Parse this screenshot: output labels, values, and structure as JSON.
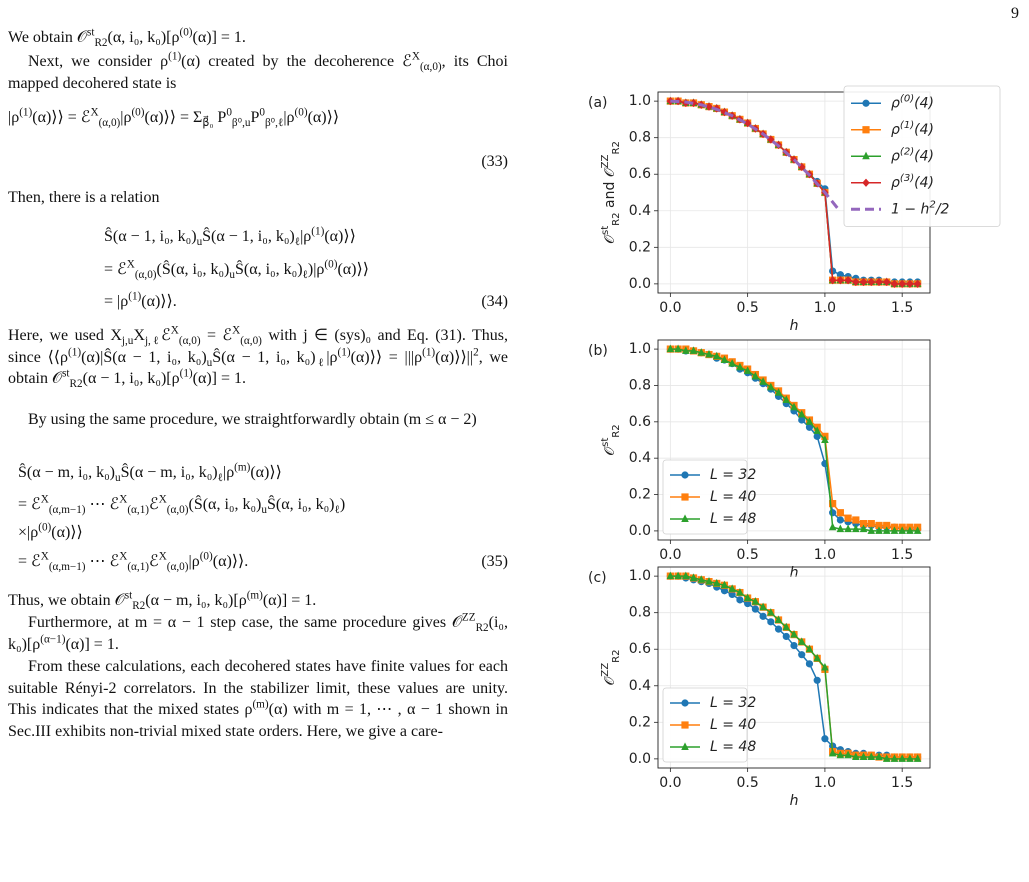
{
  "page_number": "9",
  "paragraphs": [
    "We obtain 𝒪^{st}_{R2}(α, i₀, k₀)[ρ^{(0)}(α)] = 1.",
    "Next, we consider ρ^{(1)}(α) created by the decoherence ℰ^{X}_{(α,0)}, its Choi mapped decohered state is",
    "Then, there is a relation",
    "Here, we used X_{j,u}X_{j,ℓ}ℰ^{X}_{(α,0)} = ℰ^{X}_{(α,0)} with j ∈ (sys)₀ and Eq. (31). Thus, since ⟨⟨ρ^{(1)}(α)|Ŝ(α − 1, i₀, k₀)_{u}Ŝ(α − 1, i₀, k₀)_{ℓ}|ρ^{(1)}(α)⟩⟩ = |||ρ^{(1)}(α)⟩⟩||^{2}, we obtain 𝒪^{st}_{R2}(α − 1, i₀, k₀)[ρ^{(1)}(α)] = 1.",
    "By using the same procedure, we straightforwardly obtain (m ≤ α − 2)",
    "Thus, we obtain 𝒪^{st}_{R2}(α − m, i₀, k₀)[ρ^{(m)}(α)] = 1.",
    "Furthermore, at m = α − 1 step case, the same procedure gives 𝒪^{ZZ}_{R2}(i₀, k₀)[ρ^{(α−1)}(α)] = 1.",
    "From these calculations, each decohered states have finite values for each suitable Rényi-2 correlators. In the stabilizer limit, these values are unity. This indicates that the mixed states ρ^{(m)}(α) with m = 1, ⋯ , α − 1 shown in Sec.III exhibits non-trivial mixed state orders. Here, we give a care-"
  ],
  "equations": [
    {
      "lines": [
        "|ρ^{(1)}(α)⟩⟩ = ℰ^{X}_{(α,0)}|ρ^{(0)}(α)⟩⟩ = Σ_{β⃗₀} P^{0}_{β⁰,u}P^{0}_{β⁰,ℓ}|ρ^{(0)}(α)⟩⟩"
      ],
      "number": "(33)"
    },
    {
      "lines": [
        "Ŝ(α − 1, i₀, k₀)_{u}Ŝ(α − 1, i₀, k₀)_{ℓ}|ρ^{(1)}(α)⟩⟩",
        "= ℰ^{X}_{(α,0)}(Ŝ(α, i₀, k₀)_{u}Ŝ(α, i₀, k₀)_{ℓ})|ρ^{(0)}(α)⟩⟩",
        "= |ρ^{(1)}(α)⟩⟩."
      ],
      "number": "(34)"
    },
    {
      "lines": [
        "Ŝ(α − m, i₀, k₀)_{u}Ŝ(α − m, i₀, k₀)_{ℓ}|ρ^{(m)}(α)⟩⟩",
        "= ℰ^{X}_{(α,m−1)} ⋯ ℰ^{X}_{(α,1)}ℰ^{X}_{(α,0)}(Ŝ(α, i₀, k₀)_{u}Ŝ(α, i₀, k₀)_{ℓ})",
        "×|ρ^{(0)}(α)⟩⟩",
        "= ℰ^{X}_{(α,m−1)} ⋯ ℰ^{X}_{(α,1)}ℰ^{X}_{(α,0)}|ρ^{(0)}(α)⟩⟩."
      ],
      "number": "(35)"
    }
  ],
  "chart_data": [
    {
      "type": "line",
      "panel": "(a)",
      "xlabel": "h",
      "ylabel": "𝒪^{st}_{R2} and 𝒪^{ZZ}_{R2}",
      "xlim": [
        -0.08,
        1.68
      ],
      "ylim": [
        -0.05,
        1.05
      ],
      "grid": true,
      "legend": "upper right",
      "xticks": [
        {
          "value": 0,
          "label": "0.0"
        },
        0.5,
        {
          "value": 1,
          "label": "1.0"
        },
        1.5
      ],
      "yticks": [
        {
          "value": 0,
          "label": "0.0"
        },
        0.2,
        0.4,
        0.6,
        0.8,
        {
          "value": 1,
          "label": "1.0"
        }
      ],
      "x": [
        0,
        0.05,
        0.1,
        0.15,
        0.2,
        0.25,
        0.3,
        0.35,
        0.4,
        0.45,
        0.5,
        0.55,
        0.6,
        0.65,
        0.7,
        0.75,
        0.8,
        0.85,
        0.9,
        0.95,
        1,
        1.05,
        1.1,
        1.15,
        1.2,
        1.25,
        1.3,
        1.35,
        1.4,
        1.45,
        1.5,
        1.55,
        1.6
      ],
      "series": [
        {
          "name": "ρ^{(0)}(4)",
          "color": "#1f77b4",
          "marker": "circle",
          "values": [
            1.0,
            1.0,
            0.99,
            0.99,
            0.98,
            0.97,
            0.96,
            0.94,
            0.92,
            0.9,
            0.88,
            0.85,
            0.82,
            0.79,
            0.76,
            0.72,
            0.68,
            0.64,
            0.6,
            0.56,
            0.52,
            0.07,
            0.05,
            0.04,
            0.03,
            0.02,
            0.02,
            0.02,
            0.01,
            0.01,
            0.01,
            0.01,
            0.01
          ]
        },
        {
          "name": "ρ^{(1)}(4)",
          "color": "#ff7f0e",
          "marker": "square",
          "values": [
            1.0,
            1.0,
            0.99,
            0.99,
            0.98,
            0.97,
            0.96,
            0.94,
            0.92,
            0.9,
            0.88,
            0.85,
            0.82,
            0.79,
            0.76,
            0.72,
            0.68,
            0.64,
            0.6,
            0.55,
            0.5,
            0.02,
            0.02,
            0.02,
            0.01,
            0.01,
            0.01,
            0.01,
            0.01,
            0.0,
            0.0,
            0.0,
            0.0
          ]
        },
        {
          "name": "ρ^{(2)}(4)",
          "color": "#2ca02c",
          "marker": "triangle",
          "values": [
            1.0,
            1.0,
            0.99,
            0.99,
            0.98,
            0.97,
            0.96,
            0.94,
            0.92,
            0.9,
            0.88,
            0.85,
            0.82,
            0.79,
            0.76,
            0.72,
            0.68,
            0.64,
            0.6,
            0.55,
            0.5,
            0.02,
            0.02,
            0.02,
            0.01,
            0.01,
            0.01,
            0.01,
            0.01,
            0.0,
            0.0,
            0.0,
            0.0
          ]
        },
        {
          "name": "ρ^{(3)}(4)",
          "color": "#d62728",
          "marker": "diamond",
          "values": [
            1.0,
            1.0,
            0.99,
            0.99,
            0.98,
            0.97,
            0.96,
            0.94,
            0.92,
            0.9,
            0.88,
            0.85,
            0.82,
            0.79,
            0.76,
            0.72,
            0.68,
            0.64,
            0.6,
            0.55,
            0.5,
            0.02,
            0.02,
            0.02,
            0.01,
            0.01,
            0.01,
            0.01,
            0.01,
            0.0,
            0.0,
            0.0,
            0.0
          ]
        },
        {
          "name": "1 − h^{2}/2",
          "color": "#9467bd",
          "linestyle": "dashed",
          "x": [
            0,
            0.1,
            0.2,
            0.3,
            0.4,
            0.5,
            0.6,
            0.7,
            0.8,
            0.9,
            1,
            1.1
          ],
          "values": [
            1,
            0.995,
            0.98,
            0.955,
            0.92,
            0.875,
            0.82,
            0.755,
            0.68,
            0.595,
            0.5,
            0.395
          ]
        }
      ]
    },
    {
      "type": "line",
      "panel": "(b)",
      "xlabel": "h",
      "ylabel": "𝒪^{st}_{R2}",
      "xlim": [
        -0.08,
        1.68
      ],
      "ylim": [
        -0.05,
        1.05
      ],
      "grid": true,
      "legend": "lower left",
      "xticks": [
        {
          "value": 0,
          "label": "0.0"
        },
        0.5,
        {
          "value": 1,
          "label": "1.0"
        },
        1.5
      ],
      "yticks": [
        {
          "value": 0,
          "label": "0.0"
        },
        0.2,
        0.4,
        0.6,
        0.8,
        {
          "value": 1,
          "label": "1.0"
        }
      ],
      "x": [
        0,
        0.05,
        0.1,
        0.15,
        0.2,
        0.25,
        0.3,
        0.35,
        0.4,
        0.45,
        0.5,
        0.55,
        0.6,
        0.65,
        0.7,
        0.75,
        0.8,
        0.85,
        0.9,
        0.95,
        1,
        1.05,
        1.1,
        1.15,
        1.2,
        1.25,
        1.3,
        1.35,
        1.4,
        1.45,
        1.5,
        1.55,
        1.6
      ],
      "series": [
        {
          "name": "L = 32",
          "color": "#1f77b4",
          "marker": "circle",
          "values": [
            1.0,
            1.0,
            0.99,
            0.99,
            0.98,
            0.97,
            0.95,
            0.94,
            0.92,
            0.89,
            0.87,
            0.84,
            0.81,
            0.78,
            0.74,
            0.7,
            0.66,
            0.61,
            0.57,
            0.52,
            0.37,
            0.1,
            0.06,
            0.05,
            0.04,
            0.03,
            0.03,
            0.02,
            0.02,
            0.02,
            0.01,
            0.01,
            0.01
          ]
        },
        {
          "name": "L = 40",
          "color": "#ff7f0e",
          "marker": "square",
          "values": [
            1.0,
            1.0,
            1.0,
            0.99,
            0.98,
            0.97,
            0.96,
            0.95,
            0.93,
            0.91,
            0.89,
            0.86,
            0.83,
            0.8,
            0.77,
            0.73,
            0.69,
            0.65,
            0.61,
            0.57,
            0.52,
            0.15,
            0.1,
            0.07,
            0.06,
            0.04,
            0.04,
            0.03,
            0.03,
            0.02,
            0.02,
            0.02,
            0.02
          ]
        },
        {
          "name": "L = 48",
          "color": "#2ca02c",
          "marker": "triangle",
          "values": [
            1.0,
            1.0,
            0.99,
            0.99,
            0.98,
            0.97,
            0.96,
            0.94,
            0.92,
            0.9,
            0.88,
            0.85,
            0.82,
            0.79,
            0.76,
            0.72,
            0.68,
            0.64,
            0.6,
            0.55,
            0.5,
            0.02,
            0.01,
            0.01,
            0.01,
            0.01,
            0.0,
            0.0,
            0.0,
            0.0,
            0.0,
            0.0,
            0.0
          ]
        }
      ]
    },
    {
      "type": "line",
      "panel": "(c)",
      "xlabel": "h",
      "ylabel": "𝒪^{ZZ}_{R2}",
      "xlim": [
        -0.08,
        1.68
      ],
      "ylim": [
        -0.05,
        1.05
      ],
      "grid": true,
      "legend": "lower left",
      "xticks": [
        {
          "value": 0,
          "label": "0.0"
        },
        0.5,
        {
          "value": 1,
          "label": "1.0"
        },
        1.5
      ],
      "yticks": [
        {
          "value": 0,
          "label": "0.0"
        },
        0.2,
        0.4,
        0.6,
        0.8,
        {
          "value": 1,
          "label": "1.0"
        }
      ],
      "x": [
        0,
        0.05,
        0.1,
        0.15,
        0.2,
        0.25,
        0.3,
        0.35,
        0.4,
        0.45,
        0.5,
        0.55,
        0.6,
        0.65,
        0.7,
        0.75,
        0.8,
        0.85,
        0.9,
        0.95,
        1,
        1.05,
        1.1,
        1.15,
        1.2,
        1.25,
        1.3,
        1.35,
        1.4,
        1.45,
        1.5,
        1.55,
        1.6
      ],
      "series": [
        {
          "name": "L = 32",
          "color": "#1f77b4",
          "marker": "circle",
          "values": [
            1.0,
            1.0,
            0.99,
            0.98,
            0.97,
            0.96,
            0.94,
            0.92,
            0.9,
            0.87,
            0.85,
            0.82,
            0.78,
            0.75,
            0.71,
            0.67,
            0.62,
            0.57,
            0.52,
            0.43,
            0.11,
            0.07,
            0.05,
            0.04,
            0.03,
            0.03,
            0.02,
            0.02,
            0.02,
            0.01,
            0.01,
            0.01,
            0.01
          ]
        },
        {
          "name": "L = 40",
          "color": "#ff7f0e",
          "marker": "square",
          "values": [
            1.0,
            1.0,
            1.0,
            0.99,
            0.98,
            0.97,
            0.96,
            0.95,
            0.93,
            0.91,
            0.88,
            0.86,
            0.83,
            0.8,
            0.76,
            0.72,
            0.68,
            0.64,
            0.6,
            0.55,
            0.49,
            0.04,
            0.03,
            0.03,
            0.02,
            0.02,
            0.02,
            0.01,
            0.01,
            0.01,
            0.01,
            0.01,
            0.01
          ]
        },
        {
          "name": "L = 48",
          "color": "#2ca02c",
          "marker": "triangle",
          "values": [
            1.0,
            1.0,
            1.0,
            0.99,
            0.98,
            0.97,
            0.96,
            0.95,
            0.93,
            0.91,
            0.88,
            0.86,
            0.83,
            0.8,
            0.76,
            0.72,
            0.68,
            0.64,
            0.6,
            0.55,
            0.5,
            0.03,
            0.02,
            0.02,
            0.01,
            0.01,
            0.01,
            0.01,
            0.0,
            0.0,
            0.0,
            0.0,
            0.0
          ]
        }
      ]
    }
  ]
}
